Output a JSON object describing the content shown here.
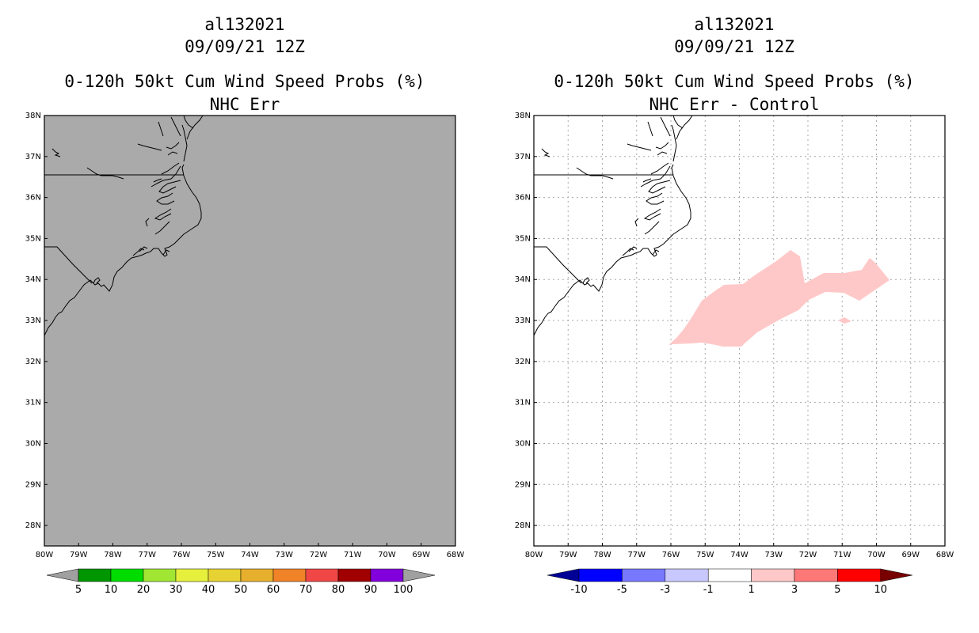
{
  "panels": [
    {
      "id": "left",
      "storm_id": "al132021",
      "datetime": "09/09/21 12Z",
      "product": "0-120h 50kt Cum Wind Speed Probs (%)",
      "subtitle": "NHC Err",
      "background": "#aaaaaa",
      "grid": false,
      "lat_labels": [
        "38N",
        "37N",
        "36N",
        "35N",
        "34N",
        "33N",
        "32N",
        "31N",
        "30N",
        "29N",
        "28N"
      ],
      "lon_labels": [
        "80W",
        "79W",
        "78W",
        "77W",
        "76W",
        "75W",
        "74W",
        "73W",
        "72W",
        "71W",
        "70W",
        "69W",
        "68W"
      ],
      "lat_range": [
        27.5,
        38.0
      ],
      "lon_range": [
        -80.0,
        -68.0
      ],
      "colorbar": {
        "under_color": "#a0a0a0",
        "over_color": "#a0a0a0",
        "colors": [
          "#009600",
          "#00dc00",
          "#a0e632",
          "#e6f03c",
          "#e6d232",
          "#e6af2d",
          "#f08228",
          "#f04646",
          "#a00000",
          "#8200dc"
        ],
        "labels": [
          "5",
          "10",
          "20",
          "30",
          "40",
          "50",
          "60",
          "70",
          "80",
          "90",
          "100"
        ]
      }
    },
    {
      "id": "right",
      "storm_id": "al132021",
      "datetime": "09/09/21 12Z",
      "product": "0-120h 50kt Cum Wind Speed Probs (%)",
      "subtitle": "NHC Err - Control",
      "background": "#ffffff",
      "grid": true,
      "lat_labels": [
        "38N",
        "37N",
        "36N",
        "35N",
        "34N",
        "33N",
        "32N",
        "31N",
        "30N",
        "29N",
        "28N"
      ],
      "lon_labels": [
        "80W",
        "79W",
        "78W",
        "77W",
        "76W",
        "75W",
        "74W",
        "73W",
        "72W",
        "71W",
        "70W",
        "69W",
        "68W"
      ],
      "lat_range": [
        27.5,
        38.0
      ],
      "lon_range": [
        -80.0,
        -68.0
      ],
      "shaded_field": {
        "category": "1 to 3",
        "color": "#ffc8c8"
      },
      "colorbar": {
        "under_color": "#000096",
        "over_color": "#780000",
        "colors": [
          "#0000ff",
          "#7878ff",
          "#c8c8ff",
          "#ffffff",
          "#ffc8c8",
          "#ff7878",
          "#ff0000"
        ],
        "labels": [
          "-10",
          "-5",
          "-3",
          "-1",
          "1",
          "3",
          "5",
          "10"
        ]
      }
    }
  ]
}
